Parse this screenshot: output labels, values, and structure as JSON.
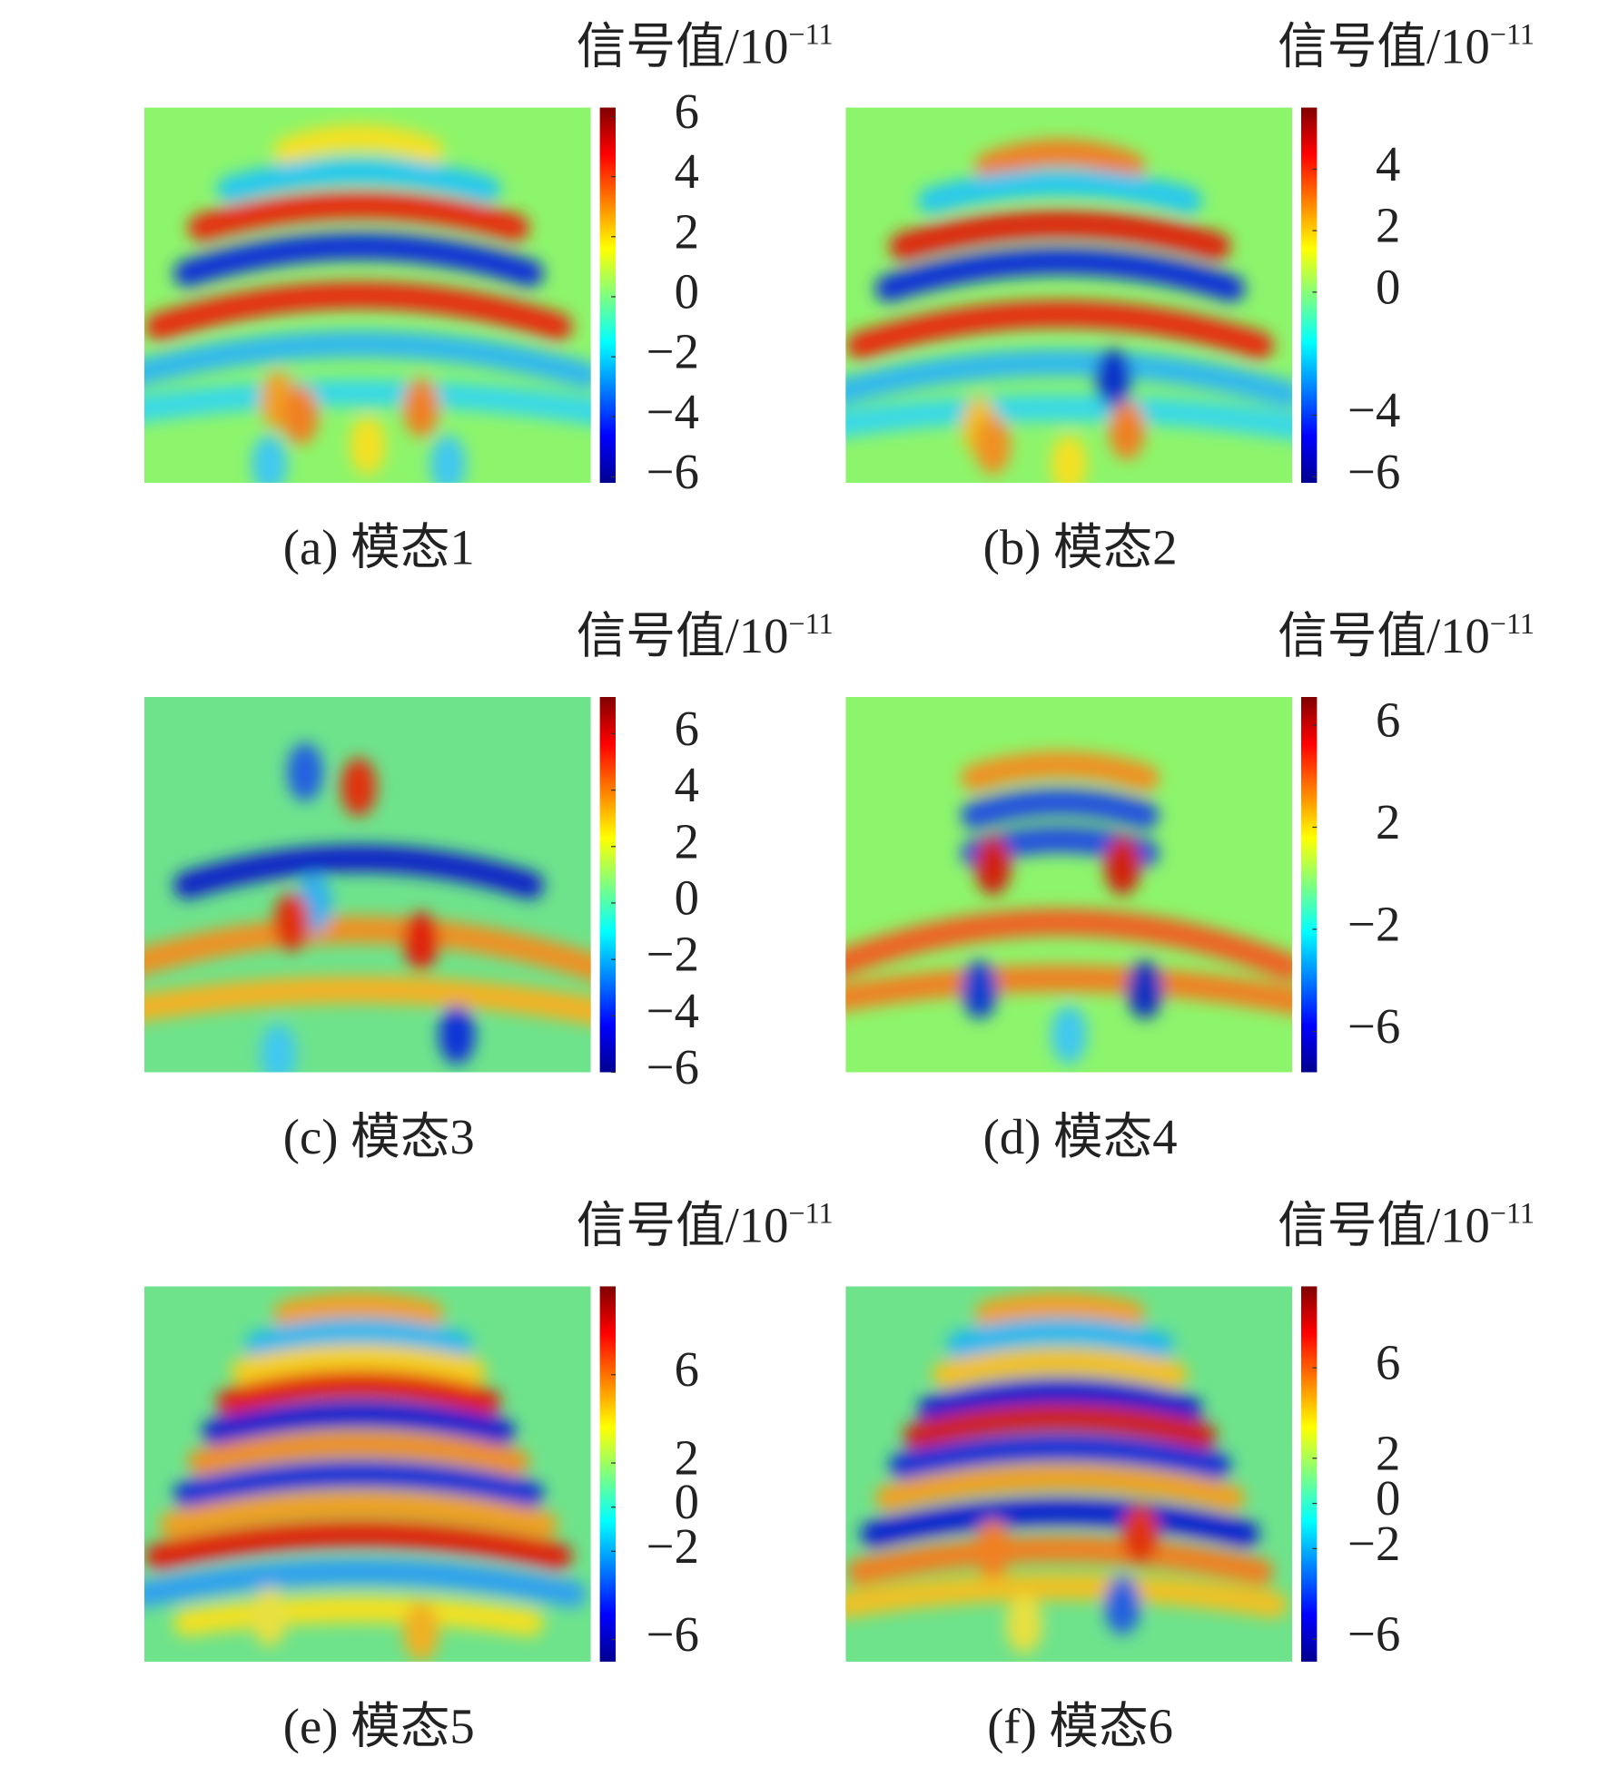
{
  "panels": [
    {
      "caption": "(a) 模态1",
      "cbar_title": "信号值/10",
      "cbar_exponent": "−11",
      "clim": [
        -6.2,
        6.3
      ],
      "ticks": [
        6,
        4,
        2,
        0,
        {
          "value": -2,
          "label": "−2"
        },
        {
          "value": -4,
          "label": "−4"
        },
        {
          "value": -6,
          "label": "−6"
        }
      ]
    },
    {
      "caption": "(b) 模态2",
      "cbar_title": "信号值/10",
      "cbar_exponent": "−11",
      "clim": [
        -6.2,
        6.0
      ],
      "ticks": [
        4,
        2,
        0,
        {
          "value": -4,
          "label": "−4"
        },
        {
          "value": -6,
          "label": "−6"
        }
      ]
    },
    {
      "caption": "(c) 模态3",
      "cbar_title": "信号值/10",
      "cbar_exponent": "−11",
      "clim": [
        -6.0,
        7.3
      ],
      "ticks": [
        6,
        4,
        2,
        0,
        {
          "value": -2,
          "label": "−2"
        },
        {
          "value": -4,
          "label": "−4"
        },
        {
          "value": -6,
          "label": "−6"
        }
      ]
    },
    {
      "caption": "(d) 模态4",
      "cbar_title": "信号值/10",
      "cbar_exponent": "−11",
      "clim": [
        -7.6,
        7.1
      ],
      "ticks": [
        6,
        2,
        {
          "value": -2,
          "label": "−2"
        },
        {
          "value": -6,
          "label": "−6"
        }
      ]
    },
    {
      "caption": "(e) 模态5",
      "cbar_title": "信号值/10",
      "cbar_exponent": "−11",
      "clim": [
        -7.0,
        10.0
      ],
      "ticks": [
        6,
        2,
        0,
        {
          "value": -2,
          "label": "−2"
        },
        {
          "value": -6,
          "label": "−6"
        }
      ]
    },
    {
      "caption": "(f) 模态6",
      "cbar_title": "信号值/10",
      "cbar_exponent": "−11",
      "clim": [
        -7.0,
        9.6
      ],
      "ticks": [
        6,
        2,
        0,
        {
          "value": -2,
          "label": "−2"
        },
        {
          "value": -6,
          "label": "−6"
        }
      ]
    }
  ]
}
